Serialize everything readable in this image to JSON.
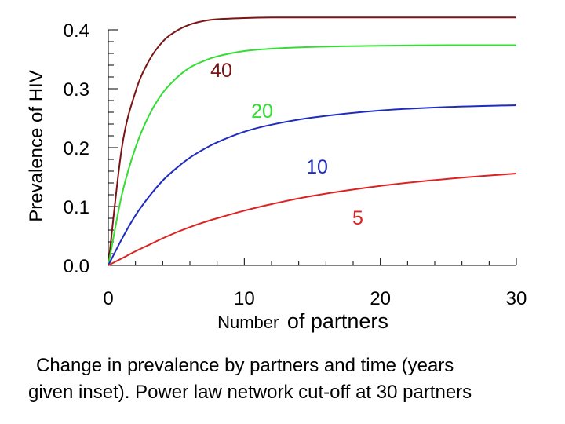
{
  "chart_data": {
    "type": "line",
    "xlabel": "Number of partners",
    "xlabel_parts": [
      "Number",
      "of partners"
    ],
    "ylabel": "Prevalence of HIV",
    "xlim": [
      0,
      30
    ],
    "ylim": [
      0,
      0.4
    ],
    "xticks": [
      "0",
      "10",
      "20",
      "30"
    ],
    "yticks": [
      "0.0",
      "0.1",
      "0.2",
      "0.3",
      "0.4"
    ],
    "grid": false,
    "series": [
      {
        "name": "40",
        "color": "#7b1414",
        "x": [
          0,
          1,
          2,
          3,
          4,
          5,
          6,
          7,
          8,
          10,
          12,
          15,
          20,
          25,
          30
        ],
        "values": [
          0,
          0.2,
          0.295,
          0.348,
          0.38,
          0.398,
          0.409,
          0.415,
          0.418,
          0.42,
          0.421,
          0.421,
          0.421,
          0.421,
          0.421
        ]
      },
      {
        "name": "20",
        "color": "#33dd33",
        "x": [
          0,
          1,
          2,
          3,
          4,
          5,
          6,
          7,
          8,
          10,
          12,
          15,
          20,
          25,
          30
        ],
        "values": [
          0,
          0.12,
          0.2,
          0.255,
          0.293,
          0.318,
          0.336,
          0.347,
          0.355,
          0.364,
          0.368,
          0.371,
          0.373,
          0.374,
          0.374
        ]
      },
      {
        "name": "10",
        "color": "#1f2bbf",
        "x": [
          0,
          1,
          2,
          3,
          4,
          5,
          6,
          7,
          8,
          10,
          12,
          15,
          20,
          25,
          30
        ],
        "values": [
          0,
          0.045,
          0.085,
          0.117,
          0.144,
          0.165,
          0.183,
          0.197,
          0.209,
          0.227,
          0.239,
          0.251,
          0.263,
          0.269,
          0.272
        ]
      },
      {
        "name": "5",
        "color": "#dd2222",
        "x": [
          0,
          1,
          2,
          3,
          4,
          5,
          6,
          7,
          8,
          10,
          12,
          15,
          20,
          25,
          30
        ],
        "values": [
          0,
          0.012,
          0.024,
          0.035,
          0.046,
          0.056,
          0.065,
          0.073,
          0.08,
          0.093,
          0.104,
          0.118,
          0.135,
          0.147,
          0.156
        ]
      }
    ]
  },
  "caption": {
    "line1": "Change in prevalence by partners and time (years",
    "line2": "given inset). Power law network cut-off at 30 partners"
  }
}
